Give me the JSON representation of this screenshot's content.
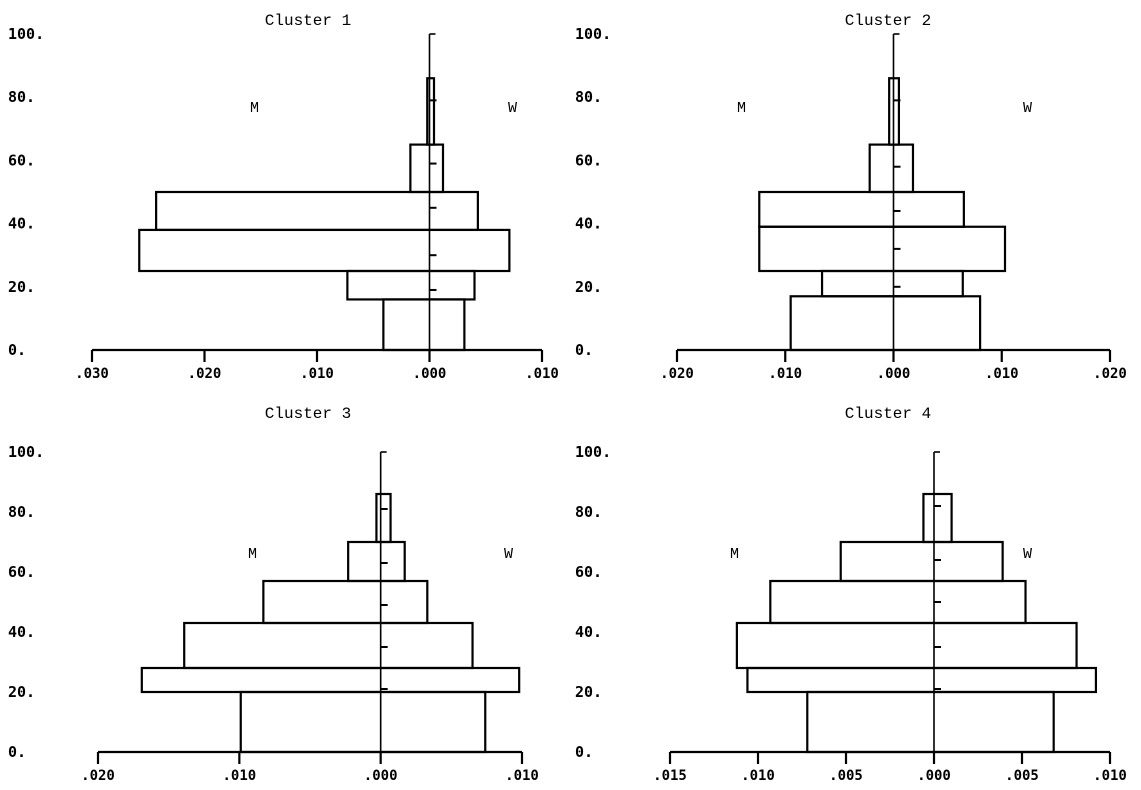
{
  "chart_data": [
    {
      "type": "bar",
      "title": "Cluster 1",
      "left_label": "M",
      "right_label": "W",
      "yticks": [
        "0.",
        "20.",
        "40.",
        "60.",
        "80.",
        "100."
      ],
      "ylim": [
        0,
        100
      ],
      "xticks": [
        -0.03,
        -0.02,
        -0.01,
        0.0,
        0.01
      ],
      "xtick_labels": [
        ".030",
        ".020",
        ".010",
        ".000",
        ".010"
      ],
      "xlim": [
        -0.03,
        0.01
      ],
      "bins": [
        {
          "y0": 0,
          "y1": 16,
          "m": 0.0041,
          "w": 0.0031,
          "median": 16
        },
        {
          "y0": 16,
          "y1": 25,
          "m": 0.0073,
          "w": 0.004,
          "median": 19
        },
        {
          "y0": 25,
          "y1": 38,
          "m": 0.0258,
          "w": 0.0071,
          "median": 30
        },
        {
          "y0": 38,
          "y1": 50,
          "m": 0.0243,
          "w": 0.0043,
          "median": 45
        },
        {
          "y0": 50,
          "y1": 65,
          "m": 0.0017,
          "w": 0.0012,
          "median": 59
        },
        {
          "y0": 65,
          "y1": 86,
          "m": 0.0002,
          "w": 0.0004,
          "median": 79
        }
      ]
    },
    {
      "type": "bar",
      "title": "Cluster 2",
      "left_label": "M",
      "right_label": "W",
      "yticks": [
        "0.",
        "20.",
        "40.",
        "60.",
        "80.",
        "100."
      ],
      "ylim": [
        0,
        100
      ],
      "xticks": [
        -0.02,
        -0.01,
        0.0,
        0.01,
        0.02
      ],
      "xtick_labels": [
        ".020",
        ".010",
        ".000",
        ".010",
        ".020"
      ],
      "xlim": [
        -0.02,
        0.02
      ],
      "bins": [
        {
          "y0": 0,
          "y1": 17,
          "m": 0.0095,
          "w": 0.008,
          "median": 17
        },
        {
          "y0": 17,
          "y1": 25,
          "m": 0.0066,
          "w": 0.0064,
          "median": 20
        },
        {
          "y0": 25,
          "y1": 39,
          "m": 0.0124,
          "w": 0.0103,
          "median": 32
        },
        {
          "y0": 39,
          "y1": 50,
          "m": 0.0124,
          "w": 0.0065,
          "median": 44
        },
        {
          "y0": 50,
          "y1": 65,
          "m": 0.0022,
          "w": 0.0018,
          "median": 58
        },
        {
          "y0": 65,
          "y1": 86,
          "m": 0.0004,
          "w": 0.0005,
          "median": 79
        }
      ]
    },
    {
      "type": "bar",
      "title": "Cluster 3",
      "left_label": "M",
      "right_label": "W",
      "yticks": [
        "0.",
        "20.",
        "40.",
        "60.",
        "80.",
        "100."
      ],
      "ylim": [
        0,
        100
      ],
      "xticks": [
        -0.02,
        -0.01,
        0.0,
        0.01
      ],
      "xtick_labels": [
        ".020",
        ".010",
        ".000",
        ".010"
      ],
      "xlim": [
        -0.02,
        0.01
      ],
      "bins": [
        {
          "y0": 0,
          "y1": 20,
          "m": 0.0099,
          "w": 0.0074,
          "median": 20
        },
        {
          "y0": 20,
          "y1": 28,
          "m": 0.0169,
          "w": 0.0098,
          "median": 21
        },
        {
          "y0": 28,
          "y1": 43,
          "m": 0.0139,
          "w": 0.0065,
          "median": 35
        },
        {
          "y0": 43,
          "y1": 57,
          "m": 0.0083,
          "w": 0.0033,
          "median": 49
        },
        {
          "y0": 57,
          "y1": 70,
          "m": 0.0023,
          "w": 0.0017,
          "median": 63
        },
        {
          "y0": 70,
          "y1": 86,
          "m": 0.0003,
          "w": 0.0007,
          "median": 81
        }
      ]
    },
    {
      "type": "bar",
      "title": "Cluster 4",
      "left_label": "M",
      "right_label": "W",
      "yticks": [
        "0.",
        "20.",
        "40.",
        "60.",
        "80.",
        "100."
      ],
      "ylim": [
        0,
        100
      ],
      "xticks": [
        -0.015,
        -0.01,
        -0.005,
        0.0,
        0.005,
        0.01
      ],
      "xtick_labels": [
        ".015",
        ".010",
        ".005",
        ".000",
        ".005",
        ".010"
      ],
      "xlim": [
        -0.015,
        0.01
      ],
      "bins": [
        {
          "y0": 0,
          "y1": 20,
          "m": 0.0072,
          "w": 0.0068,
          "median": 20
        },
        {
          "y0": 20,
          "y1": 28,
          "m": 0.0106,
          "w": 0.0092,
          "median": 21
        },
        {
          "y0": 28,
          "y1": 43,
          "m": 0.0112,
          "w": 0.0081,
          "median": 35
        },
        {
          "y0": 43,
          "y1": 57,
          "m": 0.0093,
          "w": 0.0052,
          "median": 50
        },
        {
          "y0": 57,
          "y1": 70,
          "m": 0.0053,
          "w": 0.0039,
          "median": 64
        },
        {
          "y0": 70,
          "y1": 86,
          "m": 0.0006,
          "w": 0.001,
          "median": 82
        }
      ]
    }
  ]
}
